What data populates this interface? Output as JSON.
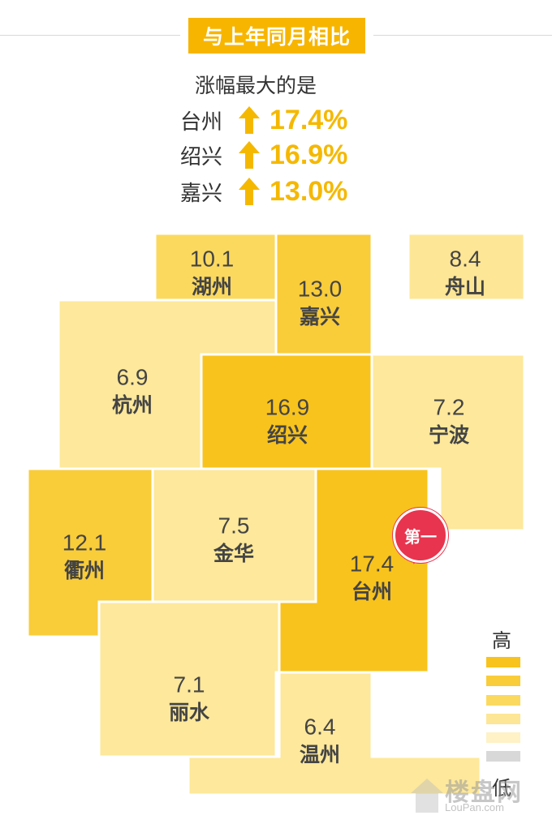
{
  "header": {
    "title": "与上年同月相比",
    "subtitle": "涨幅最大的是"
  },
  "top_increases": [
    {
      "city": "台州",
      "value": "17.4%"
    },
    {
      "city": "绍兴",
      "value": "16.9%"
    },
    {
      "city": "嘉兴",
      "value": "13.0%"
    }
  ],
  "badge": {
    "label": "第一"
  },
  "legend": {
    "high": "高",
    "low": "低",
    "colors": [
      "#f8c31c",
      "#f9cc3a",
      "#fbd95f",
      "#fde695",
      "#fef2c6",
      "#d8d8d8"
    ]
  },
  "watermark": {
    "text": "楼盘网",
    "url": "LouPan.com"
  },
  "colors": {
    "accent": "#f7b500",
    "badge": "#e8344e"
  },
  "chart_data": {
    "type": "heatmap",
    "title": "与上年同月相比",
    "cells": [
      {
        "city": "湖州",
        "value": 10.1,
        "label": "10.1"
      },
      {
        "city": "嘉兴",
        "value": 13.0,
        "label": "13.0"
      },
      {
        "city": "舟山",
        "value": 8.4,
        "label": "8.4"
      },
      {
        "city": "杭州",
        "value": 6.9,
        "label": "6.9"
      },
      {
        "city": "绍兴",
        "value": 16.9,
        "label": "16.9"
      },
      {
        "city": "宁波",
        "value": 7.2,
        "label": "7.2"
      },
      {
        "city": "衢州",
        "value": 12.1,
        "label": "12.1"
      },
      {
        "city": "金华",
        "value": 7.5,
        "label": "7.5"
      },
      {
        "city": "台州",
        "value": 17.4,
        "label": "17.4"
      },
      {
        "city": "丽水",
        "value": 7.1,
        "label": "7.1"
      },
      {
        "city": "温州",
        "value": 6.4,
        "label": "6.4"
      }
    ]
  }
}
